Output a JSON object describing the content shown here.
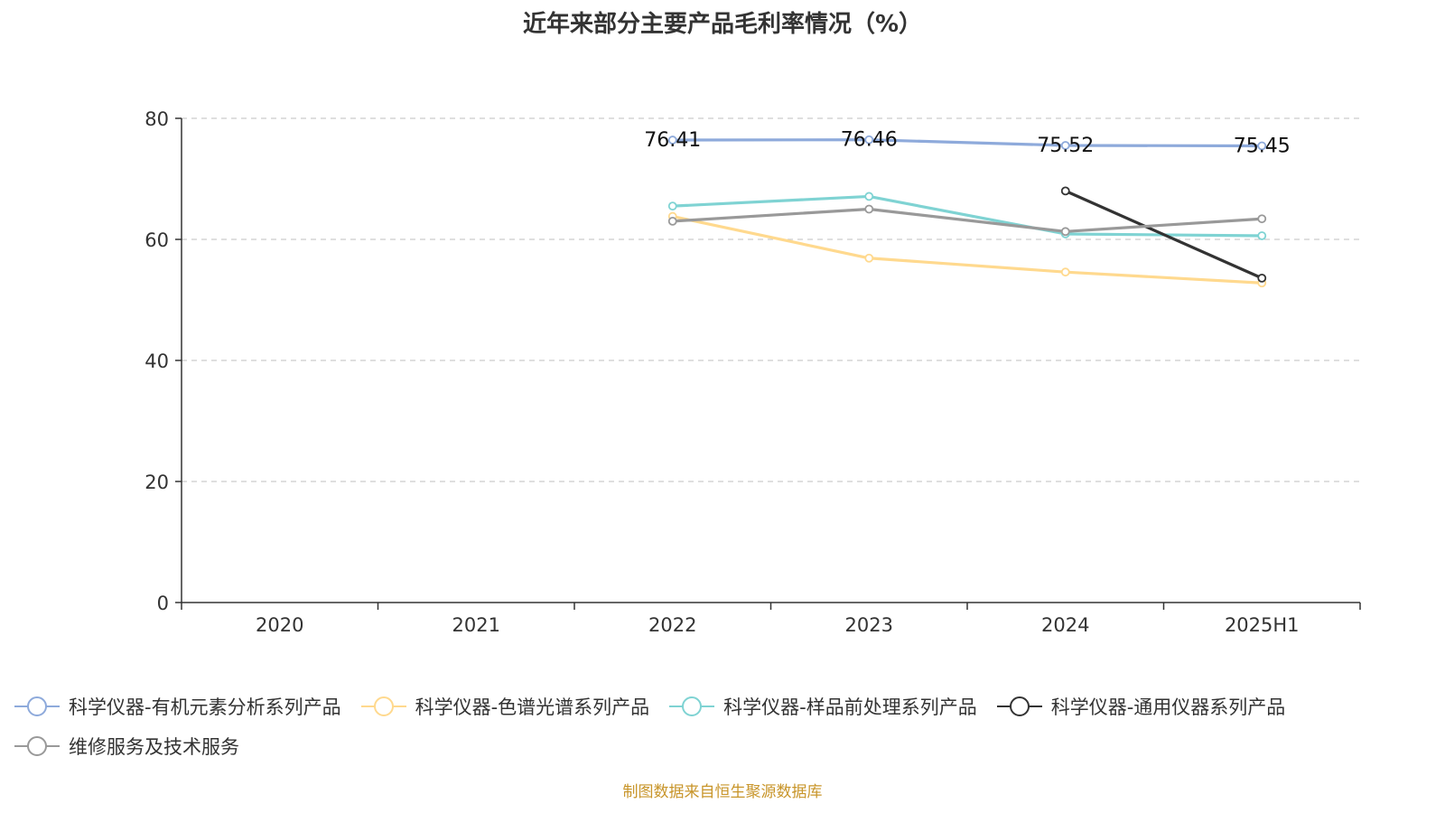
{
  "chart_data": {
    "type": "line",
    "title": "近年来部分主要产品毛利率情况（%）",
    "categories": [
      "2020",
      "2021",
      "2022",
      "2023",
      "2024",
      "2025H1"
    ],
    "ylim": [
      0,
      80
    ],
    "yticks": [
      "0",
      "20",
      "40",
      "60",
      "80"
    ],
    "grid": true,
    "legend_position": "bottom",
    "series": [
      {
        "name": "科学仪器-有机元素分析系列产品",
        "color": "#8eaadb",
        "values": [
          null,
          null,
          76.41,
          76.46,
          75.52,
          75.45
        ],
        "labels": [
          "",
          "",
          "76.41",
          "76.46",
          "75.52",
          "75.45"
        ]
      },
      {
        "name": "科学仪器-色谱光谱系列产品",
        "color": "#ffd98e",
        "values": [
          null,
          null,
          63.8,
          56.9,
          54.6,
          52.8
        ]
      },
      {
        "name": "科学仪器-样品前处理系列产品",
        "color": "#7fd3d3",
        "values": [
          null,
          null,
          65.5,
          67.1,
          60.9,
          60.6
        ]
      },
      {
        "name": "科学仪器-通用仪器系列产品",
        "color": "#333333",
        "values": [
          null,
          null,
          null,
          null,
          68.0,
          53.6
        ]
      },
      {
        "name": "维修服务及技术服务",
        "color": "#999999",
        "values": [
          null,
          null,
          63.0,
          65.0,
          61.3,
          63.4
        ]
      }
    ]
  },
  "source": "制图数据来自恒生聚源数据库"
}
